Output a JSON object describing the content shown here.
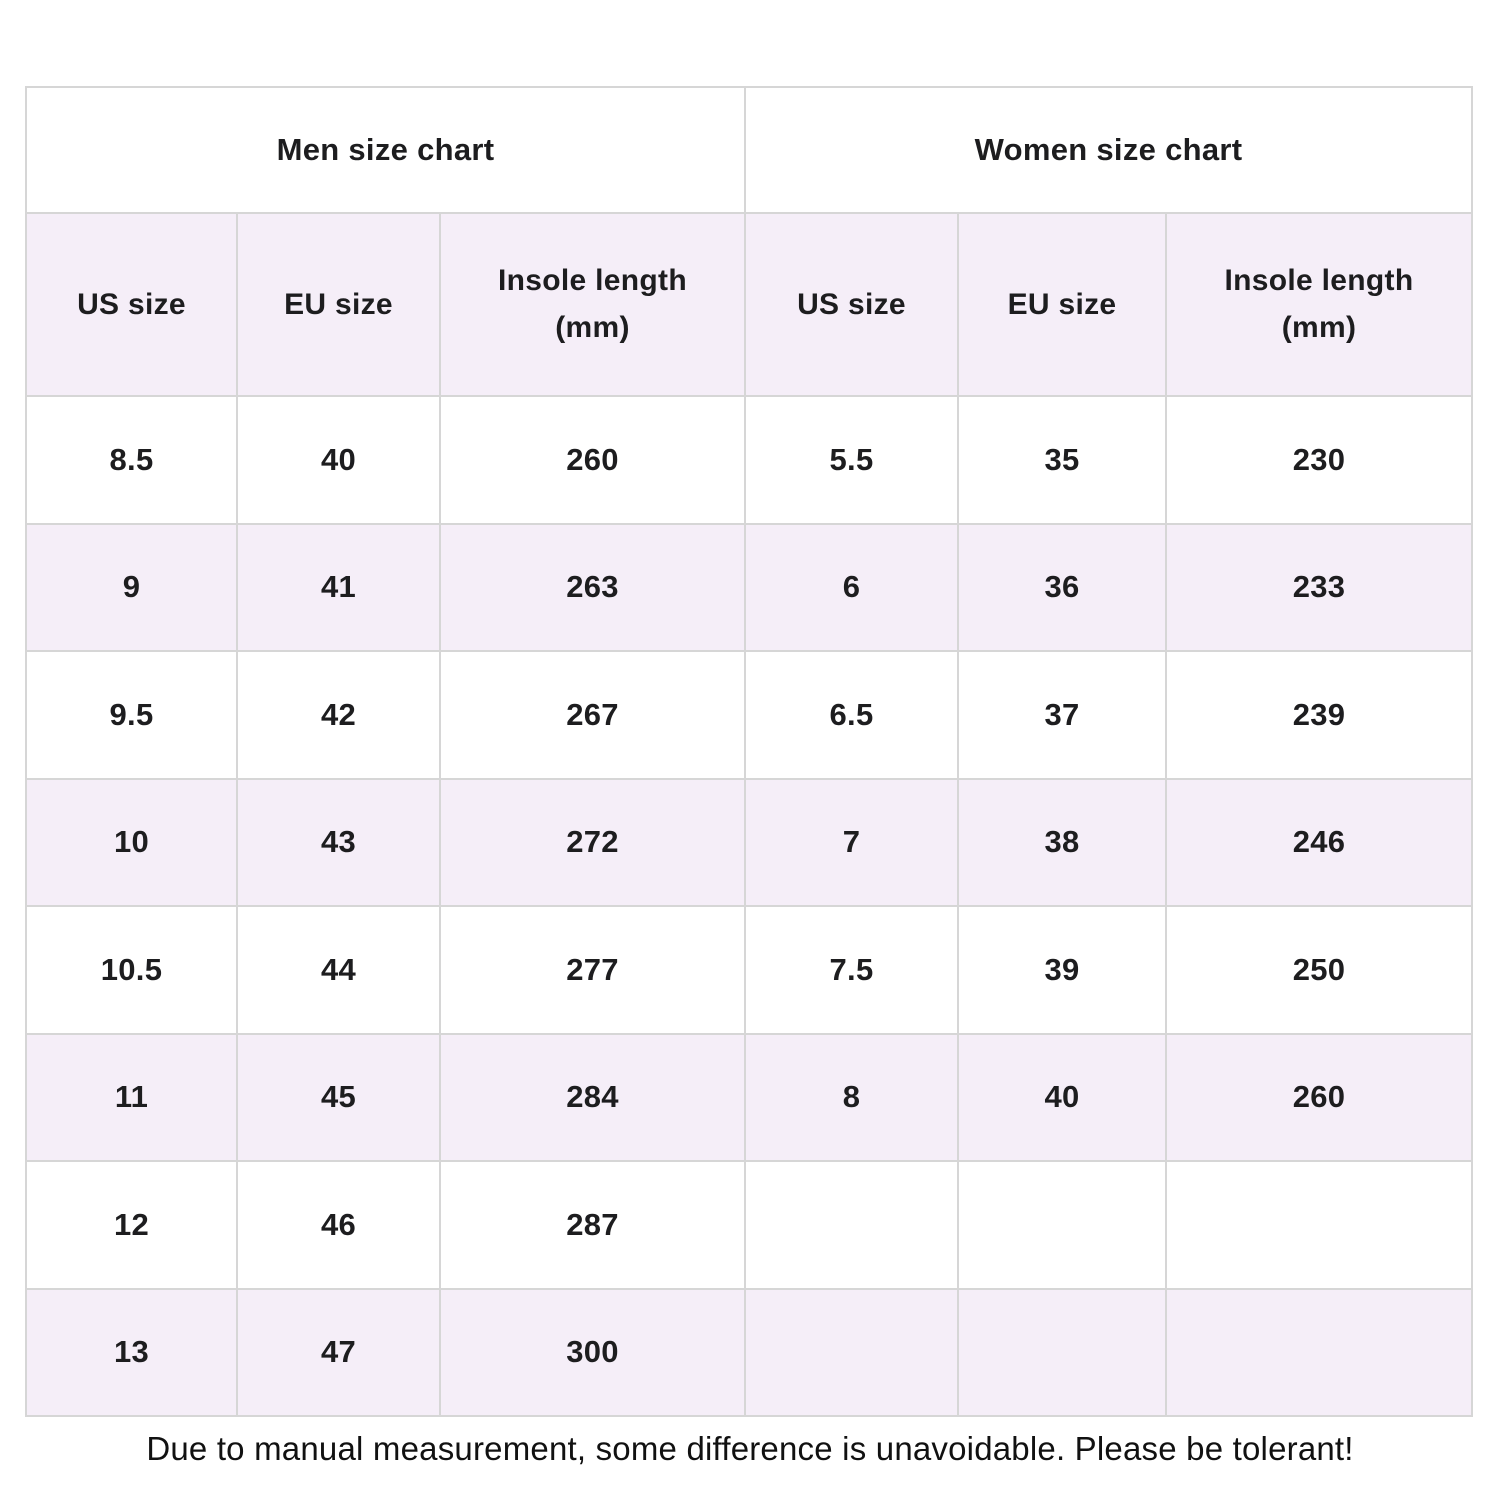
{
  "caption": "Due to manual measurement, some difference is unavoidable. Please be tolerant!",
  "colors": {
    "row_alt": "#f5eef8",
    "border": "#d6d6d6",
    "text": "#1d1d1f",
    "background": "#ffffff"
  },
  "chart_data": [
    {
      "type": "table",
      "title": "Men size chart",
      "columns": [
        "US size",
        "EU size",
        "Insole length (mm)"
      ],
      "rows": [
        [
          "8.5",
          "40",
          "260"
        ],
        [
          "9",
          "41",
          "263"
        ],
        [
          "9.5",
          "42",
          "267"
        ],
        [
          "10",
          "43",
          "272"
        ],
        [
          "10.5",
          "44",
          "277"
        ],
        [
          "11",
          "45",
          "284"
        ],
        [
          "12",
          "46",
          "287"
        ],
        [
          "13",
          "47",
          "300"
        ]
      ]
    },
    {
      "type": "table",
      "title": "Women size chart",
      "columns": [
        "US size",
        "EU size",
        "Insole length (mm)"
      ],
      "rows": [
        [
          "5.5",
          "35",
          "230"
        ],
        [
          "6",
          "36",
          "233"
        ],
        [
          "6.5",
          "37",
          "239"
        ],
        [
          "7",
          "38",
          "246"
        ],
        [
          "7.5",
          "39",
          "250"
        ],
        [
          "8",
          "40",
          "260"
        ],
        [
          "",
          "",
          ""
        ],
        [
          "",
          "",
          ""
        ]
      ]
    }
  ]
}
